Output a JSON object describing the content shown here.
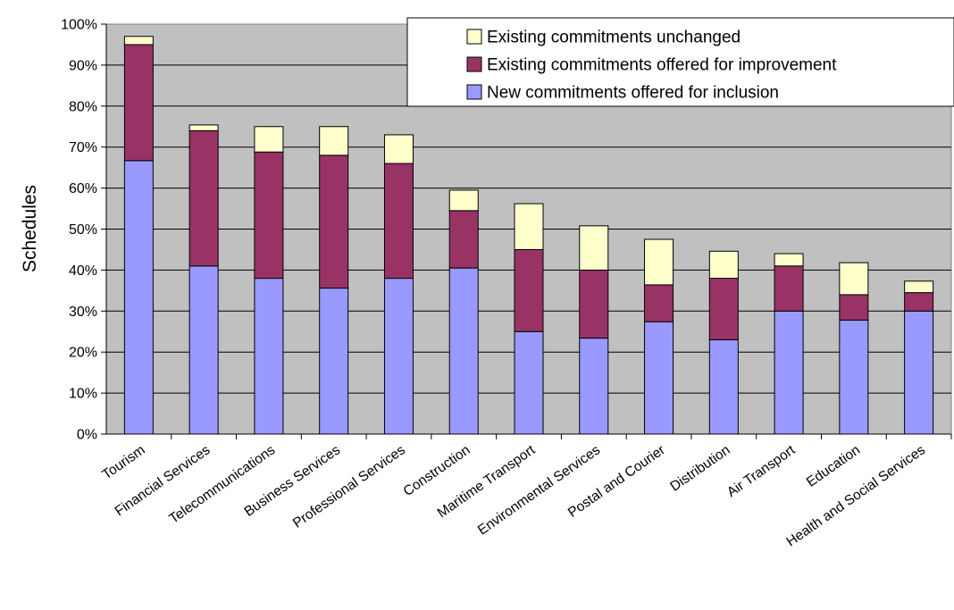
{
  "chart_data": {
    "type": "bar",
    "stacked": true,
    "title": "",
    "xlabel": "",
    "ylabel": "Schedules",
    "ylim": [
      0,
      100
    ],
    "yticks": [
      "0%",
      "10%",
      "20%",
      "30%",
      "40%",
      "50%",
      "60%",
      "70%",
      "80%",
      "90%",
      "100%"
    ],
    "grid": true,
    "legend": "top-right",
    "categories": [
      "Tourism",
      "Financial Services",
      "Telecommunications",
      "Business Services",
      "Professional Services",
      "Construction",
      "Maritime Transport",
      "Environmental Services",
      "Postal and Courier",
      "Distribution",
      "Air Transport",
      "Education",
      "Health and Social Services"
    ],
    "series": [
      {
        "name": "New commitments offered for inclusion",
        "color": "#9999ff",
        "values": [
          66.7,
          41.0,
          38.0,
          35.6,
          38.0,
          40.5,
          25.0,
          23.4,
          27.4,
          23.0,
          30.0,
          27.8,
          30.0
        ]
      },
      {
        "name": "Existing commitments offered for improvement",
        "color": "#993366",
        "values": [
          28.3,
          33.0,
          30.8,
          32.4,
          28.0,
          14.0,
          20.0,
          16.6,
          9.0,
          15.0,
          11.0,
          6.2,
          4.5
        ]
      },
      {
        "name": "Existing commitments unchanged",
        "color": "#ffffcc",
        "values": [
          2.0,
          1.4,
          6.2,
          7.0,
          7.0,
          5.0,
          11.2,
          10.8,
          11.1,
          6.6,
          3.0,
          7.8,
          2.8
        ]
      }
    ]
  },
  "colors": {
    "plot_background": "#c0c0c0",
    "bar_outline": "#000000"
  }
}
